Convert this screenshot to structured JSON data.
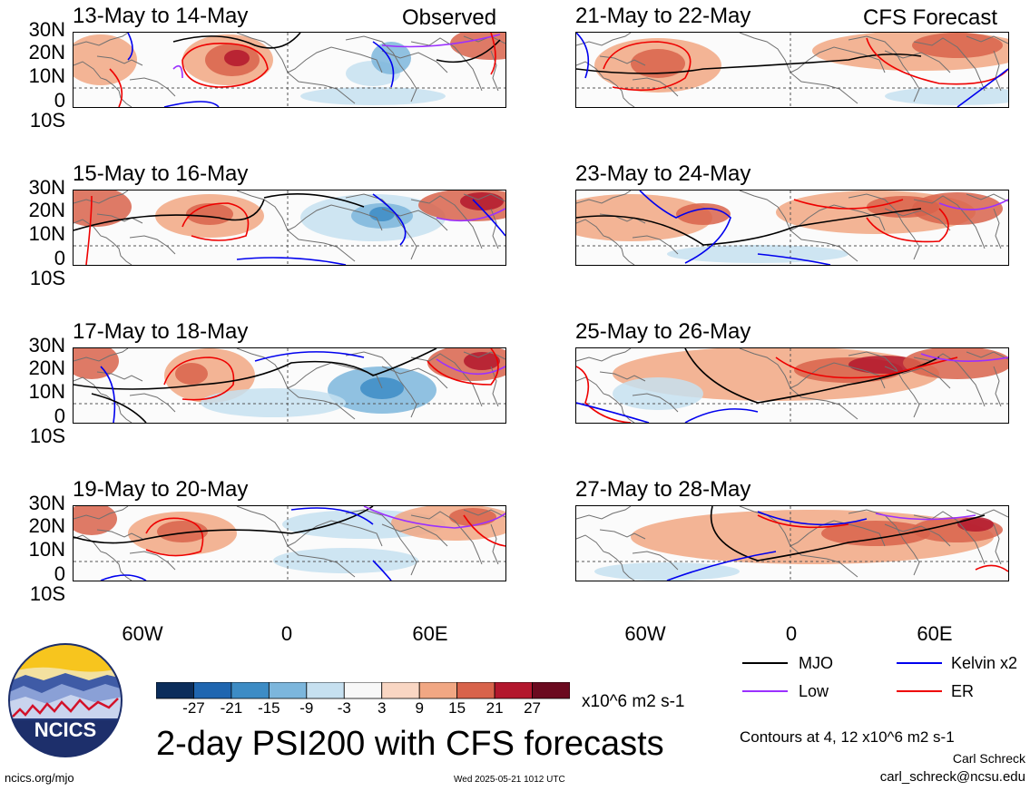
{
  "title": "2-day PSI200 with CFS forecasts",
  "units": "x10^6 m2 s-1",
  "contour_note": "Contours at 4, 12 x10^6 m2 s-1",
  "author": "Carl Schreck",
  "email": "carl_schreck@ncsu.edu",
  "site": "ncics.org/mjo",
  "timestamp": "Wed 2025-05-21 1012 UTC",
  "logo_text": "NCICS",
  "labels": {
    "observed": "Observed",
    "forecast": "CFS Forecast"
  },
  "y_axis": [
    "30N",
    "20N",
    "10N",
    "0",
    "10S"
  ],
  "x_axis": [
    "60W",
    "0",
    "60E"
  ],
  "panels": [
    {
      "title": "13-May to 14-May"
    },
    {
      "title": "15-May to 16-May"
    },
    {
      "title": "17-May to 18-May"
    },
    {
      "title": "19-May to 20-May"
    },
    {
      "title": "21-May to 22-May"
    },
    {
      "title": "23-May to 24-May"
    },
    {
      "title": "25-May to 26-May"
    },
    {
      "title": "27-May to 28-May"
    }
  ],
  "legend": [
    {
      "label": "MJO",
      "color": "#000000"
    },
    {
      "label": "Kelvin x2",
      "color": "#0000ee"
    },
    {
      "label": "Low",
      "color": "#9b30ff"
    },
    {
      "label": "ER",
      "color": "#ee0000"
    }
  ],
  "colorbar": {
    "ticks": [
      "-27",
      "-21",
      "-15",
      "-9",
      "-3",
      "3",
      "9",
      "15",
      "21",
      "27"
    ],
    "colors": [
      "#0b2d5b",
      "#1f66b0",
      "#3d8cc5",
      "#7cb6dc",
      "#c6e0f0",
      "#f8f8f8",
      "#f9d6c3",
      "#f1a783",
      "#d8634b",
      "#b3172d",
      "#6b0a1f"
    ]
  }
}
